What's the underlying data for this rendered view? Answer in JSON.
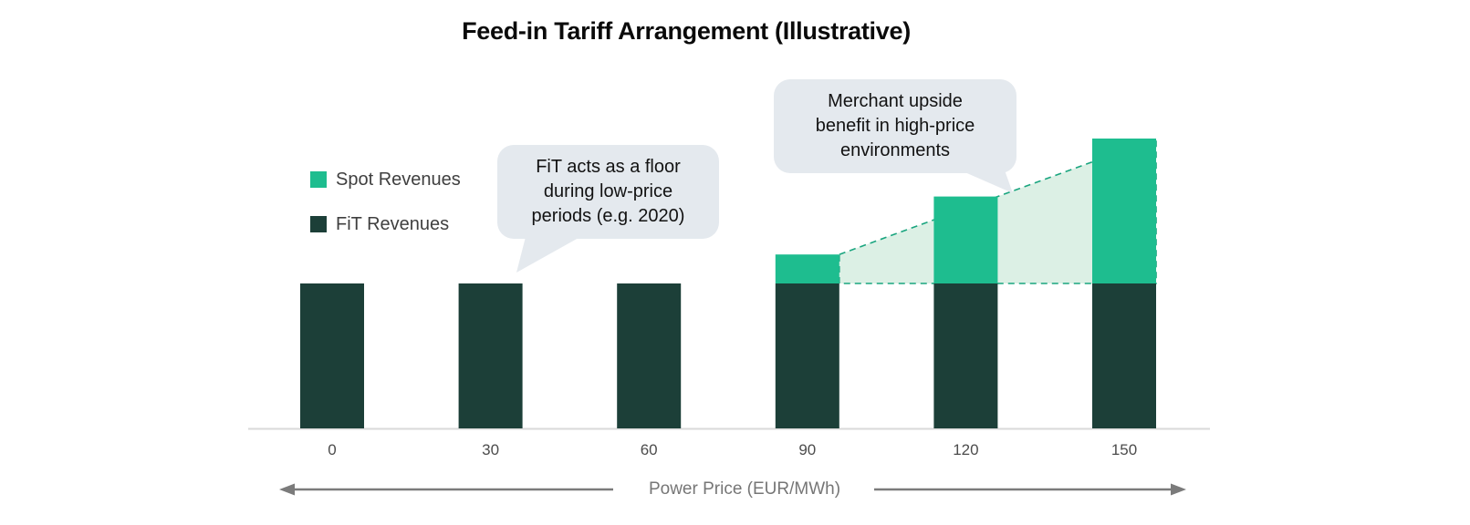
{
  "title": "Feed-in Tariff Arrangement (Illustrative)",
  "palette": {
    "spot_green": "#1ebd8f",
    "fit_dark_green": "#1c3f38",
    "upside_region_fill": "#d2ecde",
    "upside_region_stroke": "#1aa57f",
    "callout_background": "#e4e9ee",
    "axis_line_gray": "#d9d9d9",
    "arrow_gray": "#7b7b7b"
  },
  "legend": {
    "items": [
      {
        "label": "Spot Revenues",
        "color": "#1ebd8f"
      },
      {
        "label": "FiT Revenues",
        "color": "#1c3f38"
      }
    ]
  },
  "callouts": [
    {
      "text": "FiT acts as a floor\nduring low-price\nperiods (e.g. 2020)",
      "points_to": "bar at 30"
    },
    {
      "text": "Merchant upside\nbenefit in high-price\nenvironments",
      "points_to": "upside region above bar at 120"
    }
  ],
  "x_axis": {
    "label": "Power Price (EUR/MWh)"
  },
  "chart_data": {
    "type": "bar",
    "stacked": true,
    "title": "Feed-in Tariff Arrangement (Illustrative)",
    "categories": [
      "0",
      "30",
      "60",
      "90",
      "120",
      "150"
    ],
    "series": [
      {
        "name": "FiT Revenues",
        "color": "#1c3f38",
        "values": [
          100,
          100,
          100,
          100,
          100,
          100
        ]
      },
      {
        "name": "Spot Revenues",
        "color": "#1ebd8f",
        "values": [
          0,
          0,
          0,
          20,
          60,
          100
        ]
      }
    ],
    "xlabel": "Power Price (EUR/MWh)",
    "ylabel": "",
    "y_units": "illustrative revenue (FiT level = 100)",
    "ylim_units": [
      0,
      200
    ],
    "grid": false,
    "legend_position": "upper-left",
    "annotations": [
      "FiT acts as a floor during low-price periods (e.g. 2020)",
      "Merchant upside benefit in high-price environments"
    ],
    "upside_region": {
      "description": "dashed outlined light-green triangle of merchant upside above the FiT level",
      "from_category": "90",
      "to_category": "150",
      "bottom_level_units": 100,
      "top_values_units": [
        120,
        160,
        200
      ]
    }
  }
}
